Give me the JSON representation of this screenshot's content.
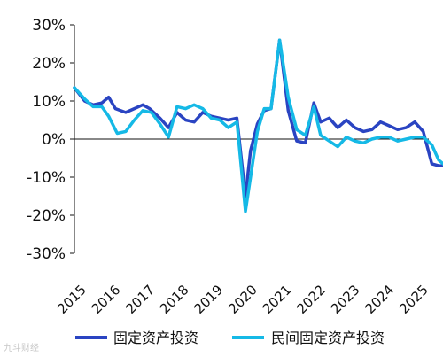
{
  "chart_data": {
    "type": "line",
    "title": "",
    "xlabel": "",
    "ylabel": "",
    "ylim": [
      -30,
      30
    ],
    "yticks": [
      30,
      20,
      10,
      0,
      -10,
      -20,
      -30
    ],
    "ytick_labels": [
      "30%",
      "20%",
      "10%",
      "0%",
      "-10%",
      "-20%",
      "-30%"
    ],
    "x_range": [
      2015.0,
      2025.85
    ],
    "xticks": [
      2015,
      2016,
      2017,
      2018,
      2019,
      2020,
      2021,
      2022,
      2023,
      2024,
      2025
    ],
    "xtick_labels": [
      "2015",
      "2016",
      "2017",
      "2018",
      "2019",
      "2020",
      "2021",
      "2022",
      "2023",
      "2024",
      "2025"
    ],
    "grid": false,
    "legend_position": "bottom",
    "series": [
      {
        "name": "固定资产投资",
        "color": "#2a44c2",
        "x": [
          2015.0,
          2015.3,
          2015.55,
          2015.8,
          2016.0,
          2016.2,
          2016.5,
          2016.75,
          2017.0,
          2017.2,
          2017.5,
          2017.75,
          2018.0,
          2018.25,
          2018.5,
          2018.75,
          2019.0,
          2019.25,
          2019.5,
          2019.75,
          2020.0,
          2020.15,
          2020.35,
          2020.55,
          2020.75,
          2021.0,
          2021.25,
          2021.5,
          2021.75,
          2022.0,
          2022.2,
          2022.45,
          2022.7,
          2022.95,
          2023.2,
          2023.45,
          2023.7,
          2023.95,
          2024.2,
          2024.45,
          2024.7,
          2024.95,
          2025.2,
          2025.45,
          2025.65,
          2025.85
        ],
        "values": [
          13.5,
          10.0,
          9.0,
          9.5,
          11.0,
          8.0,
          7.0,
          8.0,
          9.0,
          8.0,
          5.5,
          3.0,
          7.0,
          5.0,
          4.5,
          7.0,
          6.0,
          5.5,
          5.0,
          5.5,
          -15.0,
          -3.0,
          4.0,
          7.5,
          8.0,
          26.0,
          7.5,
          -0.5,
          -1.0,
          9.5,
          4.5,
          5.5,
          3.0,
          5.0,
          3.0,
          2.0,
          2.5,
          4.5,
          3.5,
          2.5,
          3.0,
          4.5,
          2.0,
          -6.5,
          -7.0,
          -7.0
        ]
      },
      {
        "name": "民间固定资产投资",
        "color": "#15b9e6",
        "x": [
          2015.0,
          2015.3,
          2015.55,
          2015.8,
          2016.0,
          2016.25,
          2016.5,
          2016.75,
          2017.0,
          2017.25,
          2017.5,
          2017.75,
          2018.0,
          2018.25,
          2018.5,
          2018.75,
          2019.0,
          2019.25,
          2019.5,
          2019.75,
          2020.0,
          2020.15,
          2020.35,
          2020.55,
          2020.75,
          2021.0,
          2021.25,
          2021.5,
          2021.75,
          2022.0,
          2022.2,
          2022.45,
          2022.7,
          2022.95,
          2023.2,
          2023.45,
          2023.7,
          2023.95,
          2024.2,
          2024.45,
          2024.7,
          2024.95,
          2025.2,
          2025.45,
          2025.65,
          2025.85
        ],
        "values": [
          13.5,
          10.5,
          8.5,
          8.5,
          6.0,
          1.5,
          2.0,
          5.0,
          7.5,
          7.0,
          4.0,
          0.5,
          8.5,
          8.0,
          9.0,
          8.0,
          5.5,
          5.0,
          3.0,
          4.5,
          -19.0,
          -10.0,
          2.0,
          8.0,
          8.0,
          26.0,
          11.0,
          2.5,
          1.0,
          8.5,
          1.0,
          -0.5,
          -2.0,
          0.5,
          -0.5,
          -1.0,
          0.0,
          0.5,
          0.5,
          -0.5,
          0.0,
          0.5,
          0.5,
          -1.5,
          -5.5,
          -7.0
        ]
      }
    ]
  },
  "watermark": "九斗财经"
}
